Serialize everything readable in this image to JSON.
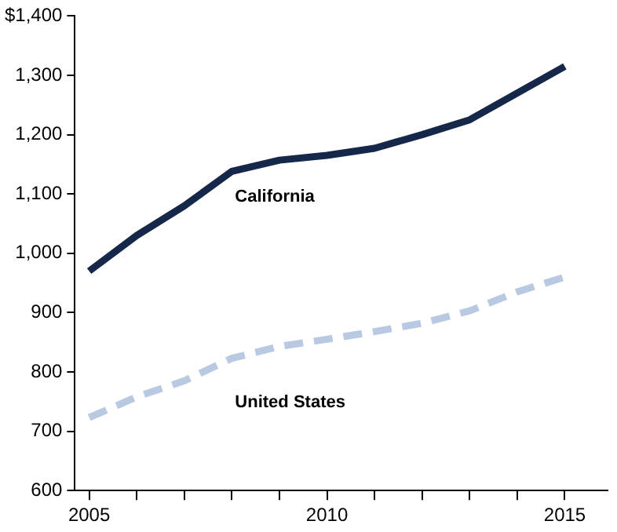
{
  "chart_data": {
    "type": "line",
    "x": [
      2005,
      2006,
      2007,
      2008,
      2009,
      2010,
      2011,
      2012,
      2013,
      2014,
      2015
    ],
    "series": [
      {
        "name": "California",
        "color": "#16284a",
        "line_style": "solid",
        "values": [
          970,
          1030,
          1080,
          1138,
          1157,
          1165,
          1177,
          1200,
          1225,
          1270,
          1315
        ]
      },
      {
        "name": "United States",
        "color": "#b9c9e2",
        "line_style": "dashed",
        "values": [
          723,
          758,
          785,
          823,
          843,
          855,
          868,
          882,
          903,
          935,
          960
        ]
      }
    ],
    "xlim": [
      2004.7,
      2015.9
    ],
    "xticks": [
      2005,
      {
        "value": 2006,
        "label": null
      },
      {
        "value": 2007,
        "label": null
      },
      {
        "value": 2008,
        "label": null
      },
      {
        "value": 2009,
        "label": null
      },
      2010,
      {
        "value": 2011,
        "label": null
      },
      {
        "value": 2012,
        "label": null
      },
      {
        "value": 2013,
        "label": null
      },
      {
        "value": 2014,
        "label": null
      },
      2015
    ],
    "ylim": [
      600,
      1400
    ],
    "yticks": [
      600,
      700,
      800,
      900,
      {
        "value": 1000,
        "label": "1,000"
      },
      {
        "value": 1100,
        "label": "1,100"
      },
      {
        "value": 1200,
        "label": "1,200"
      },
      {
        "value": 1300,
        "label": "1,300"
      },
      {
        "value": 1400,
        "label": "$1,400"
      }
    ],
    "grid": false,
    "legend": false,
    "marker": "none"
  }
}
